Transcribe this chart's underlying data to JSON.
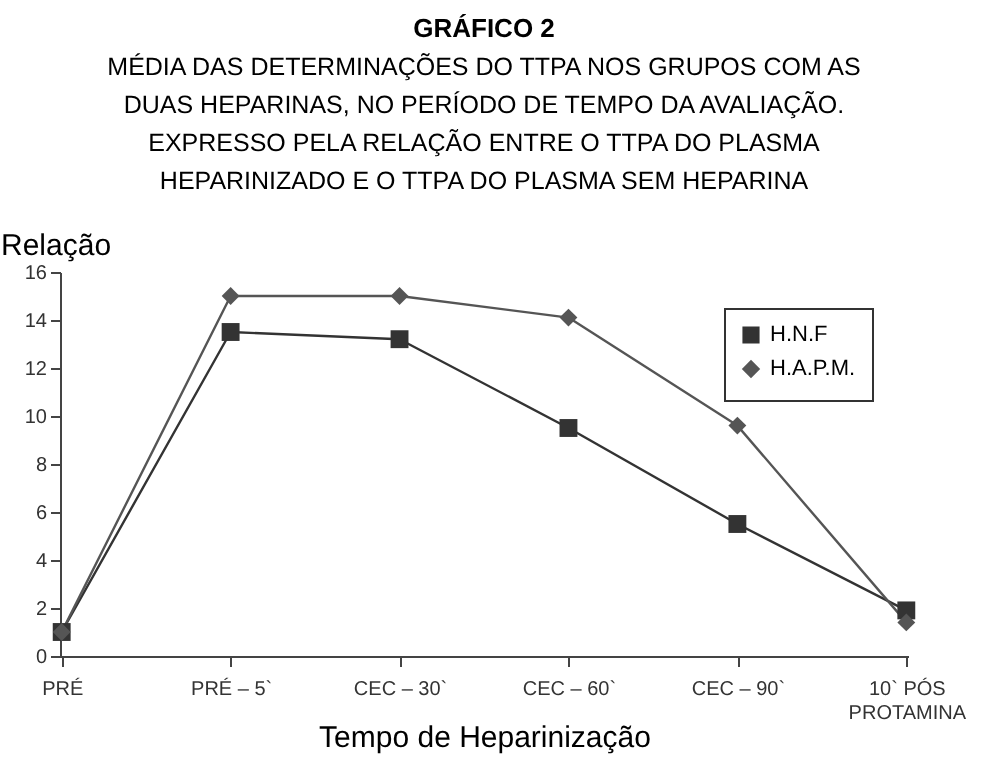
{
  "chart_data": {
    "type": "line",
    "title": "GRÁFICO 2",
    "subtitle": "MÉDIA DAS DETERMINAÇÕES DO TTPA NOS GRUPOS COM AS\nDUAS HEPARINAS, NO PERÍODO DE TEMPO DA AVALIAÇÃO.\nEXPRESSO PELA RELAÇÃO ENTRE O TTPA DO PLASMA\nHEPARINIZADO E O TTPA DO PLASMA SEM HEPARINA",
    "xlabel": "Tempo de Heparinização",
    "ylabel": "Relação",
    "categories": [
      "PRÉ",
      "PRÉ – 5`",
      "CEC – 30`",
      "CEC – 60`",
      "CEC – 90`",
      "10` PÓS\nPROTAMINA"
    ],
    "series": [
      {
        "name": "H.N.F",
        "color": "#333333",
        "marker": "square",
        "values": [
          1,
          13.5,
          13.2,
          9.5,
          5.5,
          1.9
        ]
      },
      {
        "name": "H.A.P.M.",
        "color": "#555555",
        "marker": "diamond",
        "values": [
          1,
          15,
          15,
          14.1,
          9.6,
          1.4
        ]
      }
    ],
    "ylim": [
      0,
      16
    ],
    "yticks": [
      0,
      2,
      4,
      6,
      8,
      10,
      12,
      14,
      16
    ],
    "grid": false,
    "legend": "top right",
    "line_style": "solid"
  }
}
